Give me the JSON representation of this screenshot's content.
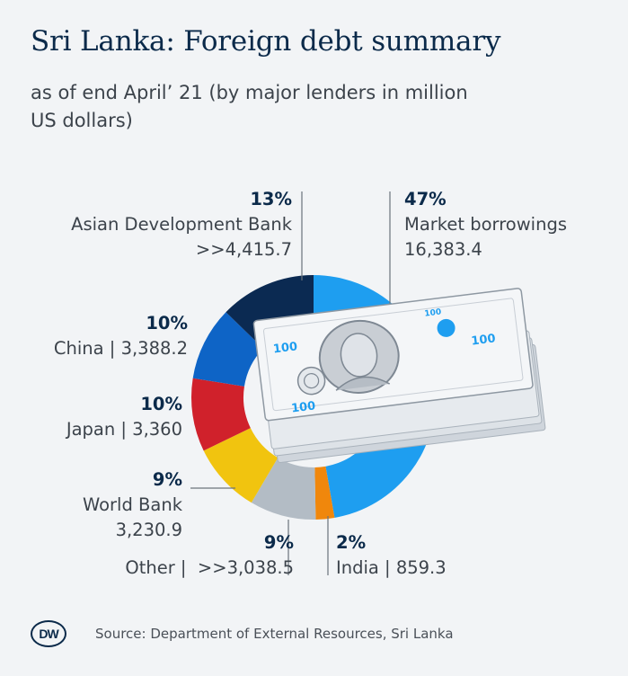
{
  "title": "Sri Lanka: Foreign debt summary",
  "subtitle": "as of end April’ 21 (by major lenders in million US dollars)",
  "source": "Source: Department of External Resources, Sri Lanka",
  "logo_text": "DW",
  "banknote_text": "100",
  "colors": {
    "background": "#f2f4f6",
    "title": "#0b2a4a"
  },
  "chart_data": {
    "type": "pie",
    "style": "donut",
    "title": "Sri Lanka: Foreign debt summary",
    "subtitle": "as of end April’ 21 (by major lenders in million US dollars)",
    "unit": "million US dollars",
    "slices": [
      {
        "name": "Market borrowings",
        "value": 16383.4,
        "value_label": "16,383.4",
        "percent": 47,
        "percent_label": "47%",
        "color": "#1e9ef0"
      },
      {
        "name": "India",
        "value": 859.3,
        "value_label": "859.3",
        "percent": 2,
        "percent_label": "2%",
        "color": "#f0870c"
      },
      {
        "name": "Other",
        "value": 3038.5,
        "value_label": ">>3,038.5",
        "percent": 9,
        "percent_label": "9%",
        "color": "#b3bcc5"
      },
      {
        "name": "World Bank",
        "value": 3230.9,
        "value_label": "3,230.9",
        "percent": 9,
        "percent_label": "9%",
        "color": "#f1c40f"
      },
      {
        "name": "Japan",
        "value": 3360,
        "value_label": "3,360",
        "percent": 10,
        "percent_label": "10%",
        "color": "#d0212b"
      },
      {
        "name": "China",
        "value": 3388.2,
        "value_label": "3,388.2",
        "percent": 10,
        "percent_label": "10%",
        "color": "#0e64c6"
      },
      {
        "name": "Asian Development Bank",
        "value": 4415.7,
        "value_label": ">>4,415.7",
        "percent": 13,
        "percent_label": "13%",
        "color": "#0b2a52"
      }
    ]
  }
}
